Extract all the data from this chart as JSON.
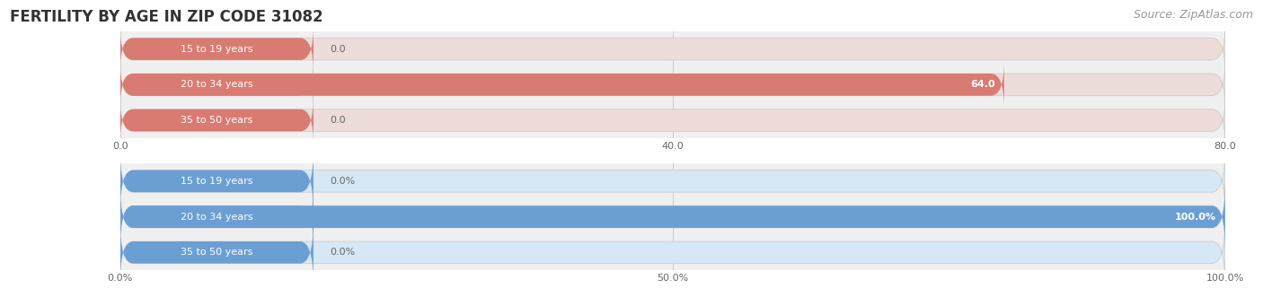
{
  "title": "FERTILITY BY AGE IN ZIP CODE 31082",
  "source": "Source: ZipAtlas.com",
  "top_chart": {
    "categories": [
      "15 to 19 years",
      "20 to 34 years",
      "35 to 50 years"
    ],
    "values": [
      0.0,
      64.0,
      0.0
    ],
    "xlim": [
      0,
      80.0
    ],
    "xticks": [
      0.0,
      40.0,
      80.0
    ],
    "xtick_labels": [
      "0.0",
      "40.0",
      "80.0"
    ],
    "bar_color": "#d97b72",
    "bar_bg_color": "#eddcda",
    "label_pill_color": "#d97b72",
    "value_inside_color": "#ffffff",
    "value_outside_color": "#666666"
  },
  "bottom_chart": {
    "categories": [
      "15 to 19 years",
      "20 to 34 years",
      "35 to 50 years"
    ],
    "values": [
      0.0,
      100.0,
      0.0
    ],
    "xlim": [
      0,
      100.0
    ],
    "xticks": [
      0.0,
      50.0,
      100.0
    ],
    "xtick_labels": [
      "0.0%",
      "50.0%",
      "100.0%"
    ],
    "bar_color": "#6b9fd4",
    "bar_bg_color": "#d6e8f5",
    "label_pill_color": "#6b9fd4",
    "value_inside_color": "#ffffff",
    "value_outside_color": "#666666"
  },
  "fig_bg": "#ffffff",
  "plot_bg": "#f0f0f0",
  "title_color": "#333333",
  "title_fontsize": 12,
  "source_color": "#999999",
  "source_fontsize": 9,
  "category_fontsize": 8,
  "value_fontsize": 8,
  "tick_fontsize": 8,
  "bar_height": 0.62,
  "grid_color": "#cccccc",
  "spine_color": "#cccccc"
}
